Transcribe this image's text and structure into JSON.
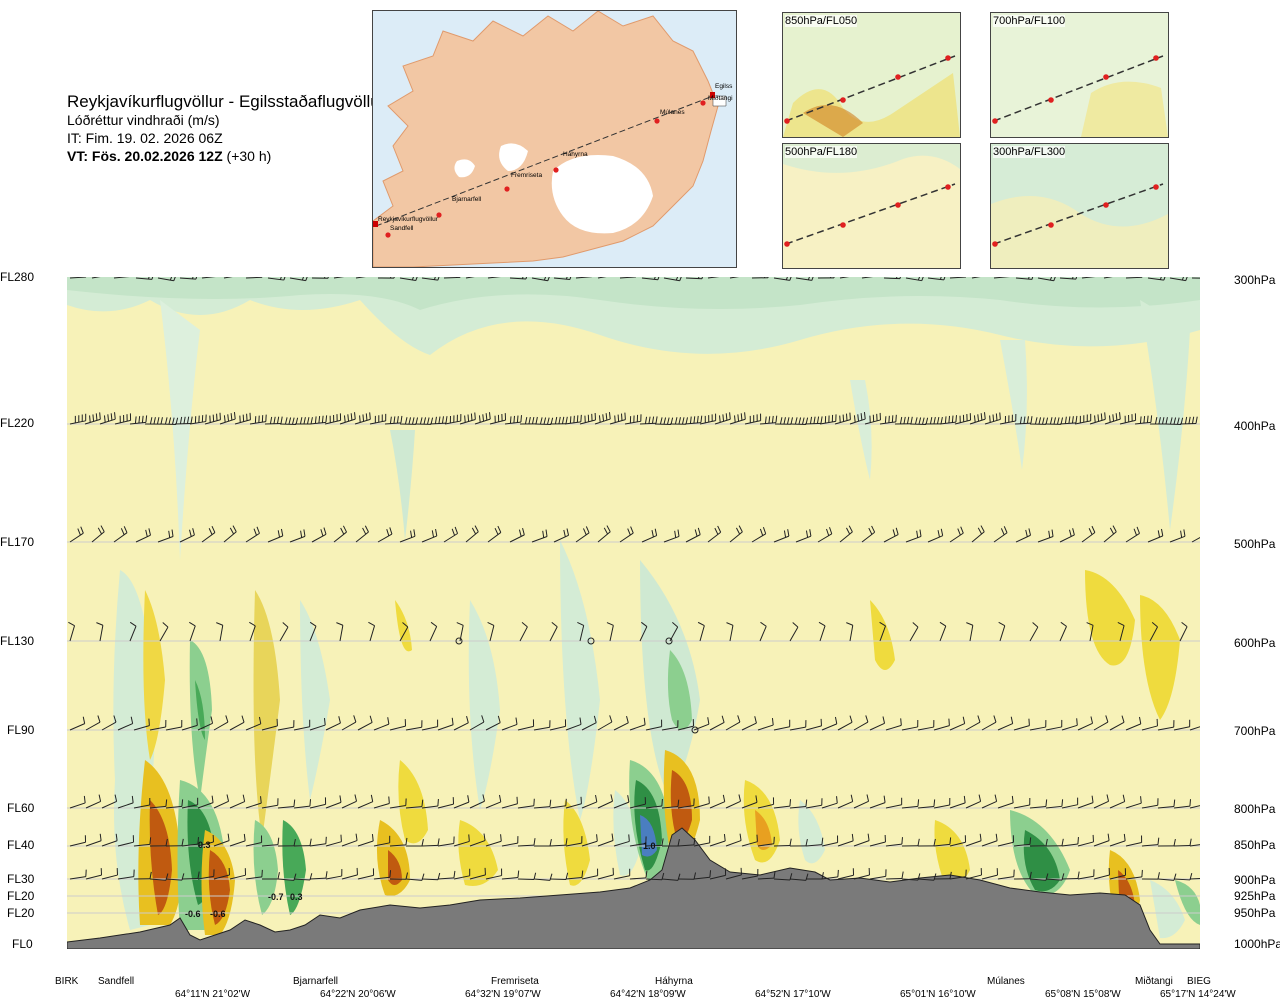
{
  "header": {
    "route": "Reykjavíkurflugvöllur - Egilsstaðaflugvöllur",
    "variable": "Lóðréttur vindhraði (m/s)",
    "issue_time": "IT: Fim. 19. 02. 2026 06Z",
    "valid_time": "VT: Fös. 20.02.2026 12Z",
    "valid_offset": "(+30 h)"
  },
  "map": {
    "waypoints": [
      "Reykjavíkurflugvöllur",
      "Sandfell",
      "Bjarnarfell",
      "Fremriseta",
      "Háhyrna",
      "Múlanes",
      "Miðtangi",
      "Egilss"
    ]
  },
  "mini_panels": [
    {
      "label": "850hPa/FL050"
    },
    {
      "label": "700hPa/FL100"
    },
    {
      "label": "500hPa/FL180"
    },
    {
      "label": "300hPa/FL300"
    }
  ],
  "colors": {
    "strong_down": "#1a7f3c",
    "moderate_down": "#6fbf73",
    "weak_down": "#cde9d0",
    "weak_up": "#f5f0b0",
    "moderate_up": "#e8c020",
    "strong_up": "#c06010",
    "terrain": "#7a7a7a"
  },
  "chart_data": {
    "type": "cross-section",
    "left_axis_levels": [
      {
        "label": "FL280",
        "pressure": 300
      },
      {
        "label": "FL220",
        "pressure": 400
      },
      {
        "label": "FL170",
        "pressure": 500
      },
      {
        "label": "FL130",
        "pressure": 600
      },
      {
        "label": "FL90",
        "pressure": 700
      },
      {
        "label": "FL60",
        "pressure": 800
      },
      {
        "label": "FL40",
        "pressure": 850
      },
      {
        "label": "FL30",
        "pressure": 900
      },
      {
        "label": "FL20",
        "pressure": 925
      },
      {
        "label": "FL20",
        "pressure": 950
      },
      {
        "label": "FL0",
        "pressure": 1000
      }
    ],
    "right_axis_levels": [
      "300hPa",
      "400hPa",
      "500hPa",
      "600hPa",
      "700hPa",
      "800hPa",
      "850hPa",
      "900hPa",
      "925hPa",
      "950hPa",
      "1000hPa"
    ],
    "bottom_places": [
      "BIRK",
      "Sandfell",
      "Bjarnarfell",
      "Fremriseta",
      "Háhyrna",
      "Múlanes",
      "Miðtangi",
      "BIEG"
    ],
    "bottom_coords": [
      "64°11'N 21°02'W",
      "64°22'N 20°06'W",
      "64°32'N 19°07'W",
      "64°42'N 18°09'W",
      "64°52'N 17°10'W",
      "65°01'N 16°10'W",
      "65°08'N 15°08'W",
      "65°17'N 14°24'W"
    ],
    "value_labels": [
      "0.3",
      "-0.7",
      "0.3",
      "-0.6",
      "-0.6",
      "1.0"
    ]
  }
}
